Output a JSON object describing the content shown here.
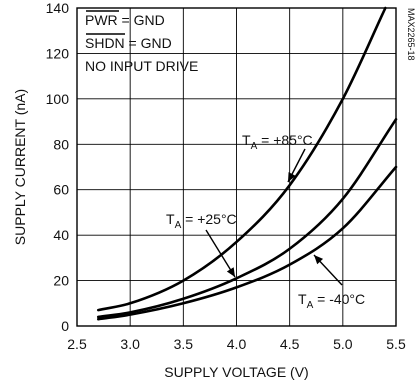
{
  "chart_data": {
    "type": "line",
    "title": "",
    "xlabel": "SUPPLY VOLTAGE (V)",
    "ylabel": "SUPPLY CURRENT (nA)",
    "xlim": [
      2.5,
      5.5
    ],
    "ylim": [
      0,
      140
    ],
    "x_ticks": [
      "2.5",
      "3.0",
      "3.5",
      "4.0",
      "4.5",
      "5.0",
      "5.5"
    ],
    "y_ticks": [
      "0",
      "20",
      "40",
      "60",
      "80",
      "100",
      "120",
      "140"
    ],
    "grid": true,
    "conditions": [
      "PWR = GND",
      "SHDN = GND",
      "NO INPUT DRIVE"
    ],
    "figure_code": "MAX2265-18",
    "series": [
      {
        "name": "TA = +85°C",
        "label_main": "T",
        "label_sub": "A",
        "label_rest": " = +85°C",
        "x": [
          2.7,
          3.0,
          3.5,
          4.0,
          4.5,
          5.0,
          5.4
        ],
        "y": [
          7,
          10,
          20,
          37,
          62,
          100,
          140
        ]
      },
      {
        "name": "TA = +25°C",
        "label_main": "T",
        "label_sub": "A",
        "label_rest": " = +25°C",
        "x": [
          2.7,
          3.0,
          3.5,
          4.0,
          4.5,
          5.0,
          5.5
        ],
        "y": [
          4,
          6,
          12,
          21,
          34,
          56,
          91
        ]
      },
      {
        "name": "TA = -40°C",
        "label_main": "T",
        "label_sub": "A",
        "label_rest": " = -40°C",
        "x": [
          2.7,
          3.0,
          3.5,
          4.0,
          4.5,
          5.0,
          5.5
        ],
        "y": [
          3,
          5,
          10,
          17,
          27,
          43,
          70
        ]
      }
    ]
  }
}
